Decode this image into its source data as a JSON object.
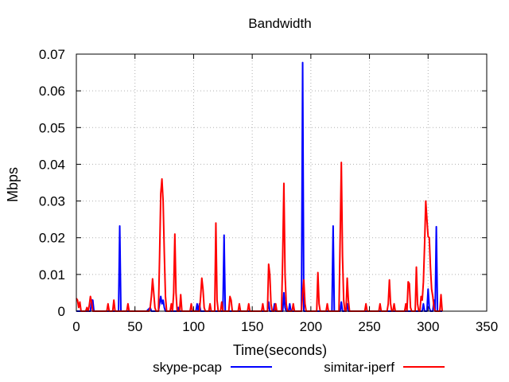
{
  "chart_data": {
    "type": "line",
    "title": "Bandwidth",
    "xlabel": "Time(seconds)",
    "ylabel": "Mbps",
    "xlim": [
      0,
      350
    ],
    "ylim": [
      0,
      0.07
    ],
    "x_ticks": [
      0,
      50,
      100,
      150,
      200,
      250,
      300,
      350
    ],
    "y_ticks": [
      0,
      0.01,
      0.02,
      0.03,
      0.04,
      0.05,
      0.06,
      0.07
    ],
    "x_tick_labels": [
      "0",
      "50",
      "100",
      "150",
      "200",
      "250",
      "300",
      "350"
    ],
    "y_tick_labels": [
      "0",
      "0.01",
      "0.02",
      "0.03",
      "0.04",
      "0.05",
      "0.06",
      "0.07"
    ],
    "grid": true,
    "legend_position": "bottom",
    "series": [
      {
        "name": "skype-pcap",
        "color": "#0000ff",
        "points": [
          [
            0,
            0
          ],
          [
            12,
            0
          ],
          [
            13,
            0.003
          ],
          [
            14,
            0.003
          ],
          [
            15,
            0
          ],
          [
            36,
            0
          ],
          [
            37,
            0.0232
          ],
          [
            38,
            0
          ],
          [
            60,
            0
          ],
          [
            63,
            0.001
          ],
          [
            64,
            0
          ],
          [
            70,
            0
          ],
          [
            71,
            0.002
          ],
          [
            72,
            0.004
          ],
          [
            73,
            0.002
          ],
          [
            74,
            0.003
          ],
          [
            75,
            0.001
          ],
          [
            76,
            0
          ],
          [
            86,
            0
          ],
          [
            87,
            0.001
          ],
          [
            88,
            0
          ],
          [
            102,
            0
          ],
          [
            103,
            0.002
          ],
          [
            104,
            0
          ],
          [
            105,
            0.002
          ],
          [
            106,
            0
          ],
          [
            125,
            0
          ],
          [
            126,
            0.0207
          ],
          [
            127,
            0
          ],
          [
            163,
            0
          ],
          [
            164,
            0.0025
          ],
          [
            165,
            0
          ],
          [
            168,
            0
          ],
          [
            169,
            0.002
          ],
          [
            170,
            0
          ],
          [
            176,
            0
          ],
          [
            177,
            0.005
          ],
          [
            178,
            0.001
          ],
          [
            179,
            0
          ],
          [
            181,
            0
          ],
          [
            182,
            0.002
          ],
          [
            183,
            0
          ],
          [
            192,
            0
          ],
          [
            193,
            0.0677
          ],
          [
            194,
            0
          ],
          [
            218,
            0
          ],
          [
            219,
            0.0232
          ],
          [
            220,
            0
          ],
          [
            225,
            0
          ],
          [
            226,
            0.0025
          ],
          [
            227,
            0
          ],
          [
            230,
            0
          ],
          [
            231,
            0.002
          ],
          [
            232,
            0
          ],
          [
            295,
            0
          ],
          [
            296,
            0.002
          ],
          [
            297,
            0
          ],
          [
            299,
            0
          ],
          [
            300,
            0.006
          ],
          [
            301,
            0.001
          ],
          [
            302,
            0
          ],
          [
            304,
            0
          ],
          [
            305,
            0.003
          ],
          [
            306,
            0
          ],
          [
            307,
            0.023
          ],
          [
            308,
            0
          ],
          [
            312,
            0
          ]
        ]
      },
      {
        "name": "simitar-iperf",
        "color": "#ff0000",
        "points": [
          [
            0,
            0.0035
          ],
          [
            1,
            0.003
          ],
          [
            2,
            0.001
          ],
          [
            3,
            0.0025
          ],
          [
            4,
            0
          ],
          [
            8,
            0
          ],
          [
            9,
            0.001
          ],
          [
            10,
            0
          ],
          [
            11,
            0.0015
          ],
          [
            12,
            0.004
          ],
          [
            13,
            0.0025
          ],
          [
            14,
            0
          ],
          [
            26,
            0
          ],
          [
            27,
            0.002
          ],
          [
            28,
            0
          ],
          [
            31,
            0
          ],
          [
            32,
            0.003
          ],
          [
            33,
            0
          ],
          [
            43,
            0
          ],
          [
            44,
            0.002
          ],
          [
            45,
            0
          ],
          [
            62,
            0
          ],
          [
            63,
            0.001
          ],
          [
            64,
            0.004
          ],
          [
            65,
            0.0088
          ],
          [
            66,
            0.005
          ],
          [
            67,
            0.001
          ],
          [
            68,
            0
          ],
          [
            70,
            0
          ],
          [
            71,
            0.015
          ],
          [
            72,
            0.032
          ],
          [
            73,
            0.036
          ],
          [
            74,
            0.03
          ],
          [
            75,
            0.016
          ],
          [
            76,
            0.004
          ],
          [
            77,
            0
          ],
          [
            80,
            0
          ],
          [
            81,
            0.002
          ],
          [
            82,
            0
          ],
          [
            83,
            0.005
          ],
          [
            84,
            0.021
          ],
          [
            85,
            0.005
          ],
          [
            86,
            0
          ],
          [
            88,
            0
          ],
          [
            89,
            0.0045
          ],
          [
            90,
            0
          ],
          [
            97,
            0
          ],
          [
            98,
            0.002
          ],
          [
            99,
            0
          ],
          [
            105,
            0
          ],
          [
            106,
            0.004
          ],
          [
            107,
            0.009
          ],
          [
            108,
            0.006
          ],
          [
            109,
            0.001
          ],
          [
            110,
            0
          ],
          [
            113,
            0
          ],
          [
            114,
            0.002
          ],
          [
            115,
            0
          ],
          [
            118,
            0
          ],
          [
            119,
            0.024
          ],
          [
            120,
            0.003
          ],
          [
            121,
            0
          ],
          [
            123,
            0
          ],
          [
            124,
            0.0025
          ],
          [
            125,
            0
          ],
          [
            130,
            0
          ],
          [
            131,
            0.004
          ],
          [
            132,
            0.003
          ],
          [
            133,
            0
          ],
          [
            138,
            0
          ],
          [
            139,
            0.002
          ],
          [
            140,
            0
          ],
          [
            146,
            0
          ],
          [
            147,
            0.002
          ],
          [
            148,
            0
          ],
          [
            158,
            0
          ],
          [
            159,
            0.002
          ],
          [
            160,
            0
          ],
          [
            163,
            0
          ],
          [
            164,
            0.0128
          ],
          [
            165,
            0.01
          ],
          [
            166,
            0.002
          ],
          [
            167,
            0
          ],
          [
            169,
            0
          ],
          [
            170,
            0.002
          ],
          [
            171,
            0
          ],
          [
            175,
            0
          ],
          [
            176,
            0.015
          ],
          [
            177,
            0.0348
          ],
          [
            178,
            0.01
          ],
          [
            179,
            0.002
          ],
          [
            180,
            0
          ],
          [
            184,
            0
          ],
          [
            185,
            0.002
          ],
          [
            186,
            0
          ],
          [
            192,
            0
          ],
          [
            193,
            0.005
          ],
          [
            194,
            0.0085
          ],
          [
            195,
            0.002
          ],
          [
            196,
            0
          ],
          [
            205,
            0
          ],
          [
            206,
            0.0105
          ],
          [
            207,
            0.002
          ],
          [
            208,
            0
          ],
          [
            213,
            0
          ],
          [
            214,
            0.002
          ],
          [
            215,
            0
          ],
          [
            224,
            0
          ],
          [
            225,
            0.02
          ],
          [
            226,
            0.0405
          ],
          [
            227,
            0.015
          ],
          [
            228,
            0.003
          ],
          [
            229,
            0
          ],
          [
            230,
            0
          ],
          [
            231,
            0.009
          ],
          [
            232,
            0.003
          ],
          [
            233,
            0
          ],
          [
            246,
            0
          ],
          [
            247,
            0.002
          ],
          [
            248,
            0
          ],
          [
            258,
            0
          ],
          [
            259,
            0.002
          ],
          [
            260,
            0
          ],
          [
            265,
            0
          ],
          [
            266,
            0.002
          ],
          [
            267,
            0.0085
          ],
          [
            268,
            0.002
          ],
          [
            269,
            0
          ],
          [
            270,
            0
          ],
          [
            271,
            0.002
          ],
          [
            272,
            0
          ],
          [
            280,
            0
          ],
          [
            281,
            0.002
          ],
          [
            282,
            0
          ],
          [
            283,
            0.008
          ],
          [
            284,
            0.0075
          ],
          [
            285,
            0.001
          ],
          [
            286,
            0
          ],
          [
            289,
            0
          ],
          [
            290,
            0.012
          ],
          [
            291,
            0.002
          ],
          [
            292,
            0
          ],
          [
            293,
            0
          ],
          [
            294,
            0.004
          ],
          [
            295,
            0.003
          ],
          [
            296,
            0.008
          ],
          [
            297,
            0.018
          ],
          [
            298,
            0.03
          ],
          [
            299,
            0.025
          ],
          [
            300,
            0.0203
          ],
          [
            301,
            0.02
          ],
          [
            302,
            0.012
          ],
          [
            303,
            0.006
          ],
          [
            304,
            0.004
          ],
          [
            305,
            0.001
          ],
          [
            306,
            0
          ],
          [
            310,
            0
          ],
          [
            311,
            0.0045
          ],
          [
            312,
            0
          ]
        ]
      }
    ]
  }
}
